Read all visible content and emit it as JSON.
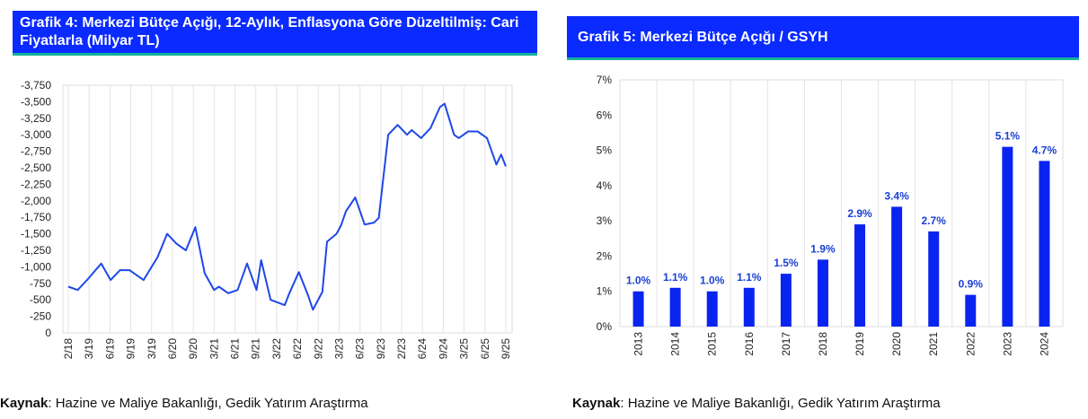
{
  "source_prefix": "Kaynak",
  "source_text": ": Hazine ve Maliye Bakanlığı, Gedik Yatırım Araştırma",
  "colors": {
    "title_bg": "#0a2aff",
    "title_border": "#12b39a",
    "series": "#1f47e8",
    "bar": "#0a24f0",
    "label": "#1a3fd6"
  },
  "chart_data": [
    {
      "type": "line",
      "title": "Grafik 4: Merkezi Bütçe Açığı, 12-Aylık, Enflasyona Göre Düzeltilmiş: Cari Fiyatlarla (Milyar TL)",
      "ylim": [
        0,
        -3750
      ],
      "y_reversed": true,
      "y_ticks": [
        "-3,750",
        "-3,500",
        "-3,250",
        "-3,000",
        "-2,750",
        "-2,500",
        "-2,250",
        "-2,000",
        "-1,750",
        "-1,500",
        "-1,250",
        "-1,000",
        "-750",
        "-500",
        "-250",
        "0"
      ],
      "x_ticks": [
        "2/18",
        "3/19",
        "6/19",
        "9/19",
        "3/19",
        "6/20",
        "9/20",
        "3/21",
        "6/21",
        "9/21",
        "3/22",
        "6/22",
        "9/22",
        "3/23",
        "6/23",
        "9/23",
        "2/23",
        "6/24",
        "9/24",
        "3/25",
        "6/25",
        "9/25"
      ],
      "x_range": [
        "2018-02",
        "2025-11"
      ],
      "grid": true,
      "legend": "none",
      "x": [
        "2018-02",
        "2018-04",
        "2018-06",
        "2018-09",
        "2018-11",
        "2019-01",
        "2019-03",
        "2019-06",
        "2019-09",
        "2019-11",
        "2020-01",
        "2020-03",
        "2020-05",
        "2020-07",
        "2020-09",
        "2020-10",
        "2020-12",
        "2021-02",
        "2021-04",
        "2021-06",
        "2021-07",
        "2021-09",
        "2021-12",
        "2022-01",
        "2022-03",
        "2022-05",
        "2022-06",
        "2022-08",
        "2022-09",
        "2022-11",
        "2022-12",
        "2023-01",
        "2023-03",
        "2023-05",
        "2023-07",
        "2023-08",
        "2023-10",
        "2023-12",
        "2024-02",
        "2024-03",
        "2024-05",
        "2024-07",
        "2024-09",
        "2024-10",
        "2024-12",
        "2025-01",
        "2025-03",
        "2025-05",
        "2025-07",
        "2025-09",
        "2025-10",
        "2025-11"
      ],
      "values": [
        -700,
        -650,
        -800,
        -1050,
        -800,
        -950,
        -950,
        -800,
        -1150,
        -1500,
        -1350,
        -1250,
        -1600,
        -900,
        -650,
        -700,
        -600,
        -650,
        -1050,
        -650,
        -1100,
        -500,
        -420,
        -600,
        -920,
        -560,
        -350,
        -620,
        -1380,
        -1500,
        -1630,
        -1840,
        -2050,
        -1640,
        -1670,
        -1740,
        -3000,
        -3150,
        -3000,
        -3070,
        -2950,
        -3100,
        -3420,
        -3470,
        -3000,
        -2950,
        -3050,
        -3050,
        -2950,
        -2550,
        -2700,
        -2520
      ]
    },
    {
      "type": "bar",
      "title": "Grafik 5: Merkezi Bütçe Açığı / GSYH",
      "categories": [
        "2013",
        "2014",
        "2015",
        "2016",
        "2017",
        "2018",
        "2019",
        "2020",
        "2021",
        "2022",
        "2023",
        "2024"
      ],
      "values": [
        1.0,
        1.1,
        1.0,
        1.1,
        1.5,
        1.9,
        2.9,
        3.4,
        2.7,
        0.9,
        5.1,
        4.7
      ],
      "data_labels": [
        "1.0%",
        "1.1%",
        "1.0%",
        "1.1%",
        "1.5%",
        "1.9%",
        "2.9%",
        "3.4%",
        "2.7%",
        "0.9%",
        "5.1%",
        "4.7%"
      ],
      "ylim": [
        0,
        7
      ],
      "y_ticks": [
        "0%",
        "1%",
        "2%",
        "3%",
        "4%",
        "5%",
        "6%",
        "7%"
      ],
      "grid": true,
      "legend": "none"
    }
  ]
}
